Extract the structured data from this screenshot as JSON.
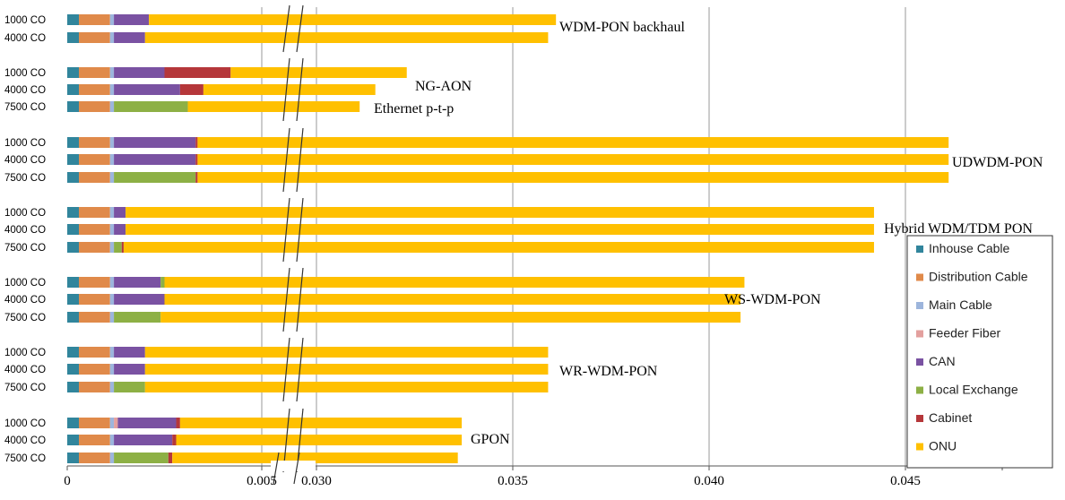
{
  "chart_data": {
    "type": "bar",
    "orientation": "horizontal",
    "stacked": true,
    "axis_break": [
      0.005,
      0.03
    ],
    "x_ticks": [
      "0",
      "0.005",
      "0.030",
      "0.035",
      "0.040",
      "0.045"
    ],
    "x_tick_values": [
      0,
      0.005,
      0.03,
      0.035,
      0.04,
      0.045
    ],
    "grid": "vertical",
    "legend_position": "right",
    "series": [
      {
        "name": "Inhouse Cable",
        "color": "#31859c"
      },
      {
        "name": "Distribution Cable",
        "color": "#e08a4a"
      },
      {
        "name": "Main Cable",
        "color": "#9db5dc"
      },
      {
        "name": "Feeder Fiber",
        "color": "#e3a09e"
      },
      {
        "name": "CAN",
        "color": "#7a52a2"
      },
      {
        "name": "Local Exchange",
        "color": "#8db045"
      },
      {
        "name": "Cabinet",
        "color": "#b5373a"
      },
      {
        "name": "ONU",
        "color": "#ffc000"
      }
    ],
    "groups": [
      {
        "label": "WDM-PON backhaul",
        "rows": [
          {
            "category": "1000 CO",
            "values": [
              0.0003,
              0.0008,
              0.0001,
              0,
              0.0009,
              0,
              0,
              0.0365
            ],
            "total": 0.0361
          },
          {
            "category": "4000 CO",
            "values": [
              0.0003,
              0.0008,
              0.0001,
              0,
              0.0008,
              0,
              0,
              0.0364
            ],
            "total": 0.0359
          }
        ]
      },
      {
        "label": "NG-AON",
        "sublabel": "Ethernet p-t-p",
        "rows": [
          {
            "category": "1000 CO",
            "values": [
              0.0003,
              0.0008,
              0.0001,
              0,
              0.0013,
              0,
              0.0017,
              0.035
            ],
            "total": 0.0323
          },
          {
            "category": "4000 CO",
            "values": [
              0.0003,
              0.0008,
              0.0001,
              0,
              0.0017,
              0,
              0.0006,
              0.035
            ],
            "total": 0.0315
          },
          {
            "category": "7500 CO",
            "values": [
              0.0003,
              0.0008,
              0.0001,
              0,
              0,
              0.0019,
              0,
              0.035
            ],
            "total": 0.0311
          }
        ]
      },
      {
        "label": "UDWDM-PON",
        "rows": [
          {
            "category": "1000 CO",
            "values": [
              0.0003,
              0.0008,
              0.0001,
              0,
              0.0021,
              0,
              5e-05,
              0.0436
            ],
            "total": 0.0461
          },
          {
            "category": "4000 CO",
            "values": [
              0.0003,
              0.0008,
              0.0001,
              0,
              0.0021,
              0,
              5e-05,
              0.0436
            ],
            "total": 0.0461
          },
          {
            "category": "7500 CO",
            "values": [
              0.0003,
              0.0008,
              0.0001,
              0,
              0,
              0.0021,
              5e-05,
              0.0436
            ],
            "total": 0.0461
          }
        ]
      },
      {
        "label": "Hybrid WDM/TDM PON",
        "rows": [
          {
            "category": "1000 CO",
            "values": [
              0.0003,
              0.0008,
              0.0001,
              0,
              0.0003,
              0,
              0,
              0.0434
            ],
            "total": 0.0442
          },
          {
            "category": "4000 CO",
            "values": [
              0.0003,
              0.0008,
              0.0001,
              0,
              0.0003,
              0,
              0,
              0.0434
            ],
            "total": 0.0442
          },
          {
            "category": "7500 CO",
            "values": [
              0.0003,
              0.0008,
              0.0001,
              0,
              0,
              0.0002,
              5e-05,
              0.0434
            ],
            "total": 0.0442
          }
        ]
      },
      {
        "label": "WS-WDM-PON",
        "rows": [
          {
            "category": "1000 CO",
            "values": [
              0.0003,
              0.0008,
              0.0001,
              0,
              0.0012,
              0.0001,
              0,
              0.041
            ],
            "total": 0.0409
          },
          {
            "category": "4000 CO",
            "values": [
              0.0003,
              0.0008,
              0.0001,
              0,
              0.0013,
              0,
              0,
              0.0409
            ],
            "total": 0.0408
          },
          {
            "category": "7500 CO",
            "values": [
              0.0003,
              0.0008,
              0.0001,
              0,
              0,
              0.0012,
              0,
              0.0409
            ],
            "total": 0.0408
          }
        ]
      },
      {
        "label": "WR-WDM-PON",
        "rows": [
          {
            "category": "1000 CO",
            "values": [
              0.0003,
              0.0008,
              0.0001,
              0,
              0.0008,
              0,
              0,
              0.0365
            ],
            "total": 0.0359
          },
          {
            "category": "4000 CO",
            "values": [
              0.0003,
              0.0008,
              0.0001,
              0,
              0.0008,
              0,
              0,
              0.0365
            ],
            "total": 0.0359
          },
          {
            "category": "7500 CO",
            "values": [
              0.0003,
              0.0008,
              0.0001,
              0,
              0,
              0.0008,
              0,
              0.0365
            ],
            "total": 0.0359
          }
        ]
      },
      {
        "label": "GPON",
        "rows": [
          {
            "category": "1000 CO",
            "values": [
              0.0003,
              0.0008,
              0.0001,
              0.0001,
              0.0015,
              0,
              0.0001,
              0.034
            ],
            "total": 0.0337
          },
          {
            "category": "4000 CO",
            "values": [
              0.0003,
              0.0008,
              0.0001,
              0,
              0.0015,
              0,
              0.0001,
              0.034
            ],
            "total": 0.0337
          },
          {
            "category": "7500 CO",
            "values": [
              0.0003,
              0.0008,
              0.0001,
              0,
              0,
              0.0014,
              0.0001,
              0.034
            ],
            "total": 0.0336
          }
        ]
      }
    ]
  }
}
